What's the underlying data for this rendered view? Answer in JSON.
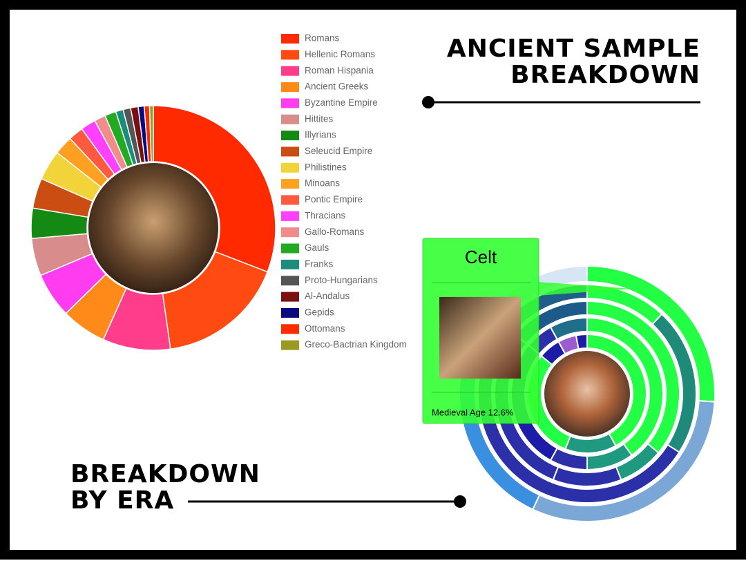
{
  "chart_data": [
    {
      "type": "donut",
      "title": [
        "ANCIENT SAMPLE",
        "BREAKDOWN"
      ],
      "categories": [
        "Romans",
        "Hellenic Romans",
        "Roman Hispania",
        "Ancient Greeks",
        "Byzantine Empire",
        "Hittites",
        "Illyrians",
        "Seleucid Empire",
        "Philistines",
        "Minoans",
        "Pontic Empire",
        "Thracians",
        "Gallo-Romans",
        "Gauls",
        "Franks",
        "Proto-Hungarians",
        "Al-Andalus",
        "Gepids",
        "Ottomans",
        "Greco-Bactrian Kingdom"
      ],
      "values": [
        31,
        17,
        9,
        6,
        6,
        5,
        4,
        4,
        4,
        2.5,
        2,
        2,
        1.5,
        1.5,
        1,
        1,
        1,
        0.8,
        0.7,
        0.5
      ],
      "colors": [
        "#ff2a00",
        "#ff4a12",
        "#ff3d8b",
        "#ff8a1a",
        "#ff3cf0",
        "#d98c8c",
        "#148a14",
        "#cc4d12",
        "#f2d43a",
        "#ffa020",
        "#ff5a40",
        "#ff40ff",
        "#f08c8c",
        "#22aa22",
        "#1c8c7c",
        "#555555",
        "#7a1010",
        "#0a0a80",
        "#ff2a00",
        "#9a9a20"
      ]
    },
    {
      "type": "sunburst",
      "title": [
        "BREAKDOWN",
        "BY ERA"
      ],
      "rings": [
        {
          "values": [
            42,
            14,
            30,
            6,
            5,
            3
          ],
          "colors": [
            "#22ff44",
            "#1f9a80",
            "#22ff44",
            "#1c1ca8",
            "#9a5cd0",
            "#1c1ca8"
          ]
        },
        {
          "values": [
            40,
            10,
            8,
            28,
            6,
            8
          ],
          "colors": [
            "#22ff44",
            "#1f9a80",
            "#2b2fa8",
            "#1c1ca8",
            "#2b2fa8",
            "#1f6f8a"
          ]
        },
        {
          "values": [
            36,
            8,
            12,
            30,
            14
          ],
          "colors": [
            "#22ff44",
            "#1f9a80",
            "#2b2fa8",
            "#2b2fa8",
            "#1c5a8a"
          ]
        },
        {
          "values": [
            12,
            22,
            50,
            16
          ],
          "colors": [
            "#22ff44",
            "#1f8a7a",
            "#2b2fa8",
            "#1f5f8a"
          ]
        },
        {
          "values": [
            26,
            31,
            22,
            21
          ],
          "colors": [
            "#22ff44",
            "#7aa7d6",
            "#3a8fe0",
            "#d6e6f5"
          ]
        }
      ],
      "tooltip": {
        "title": "Celt",
        "text": "Medieval Age 12.6%"
      }
    }
  ]
}
